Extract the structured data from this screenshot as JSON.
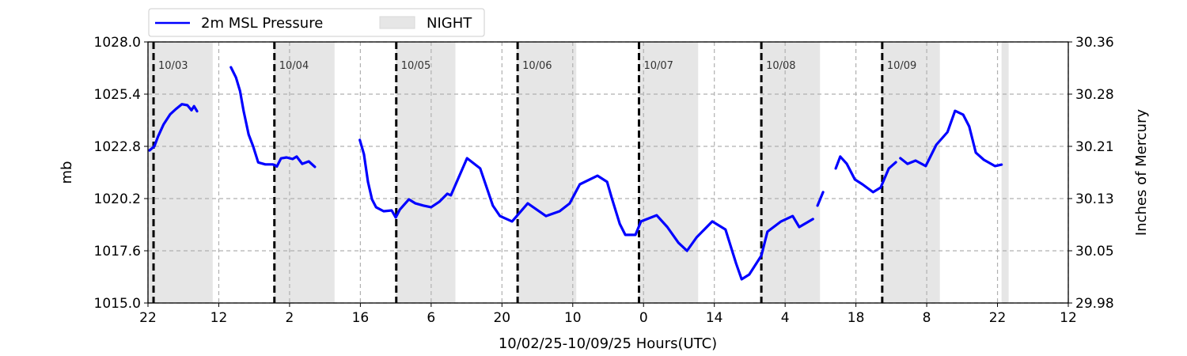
{
  "chart_data": {
    "type": "line",
    "xlabel": "10/02/25-10/09/25  Hours(UTC)",
    "ylabel": "mb",
    "ylabel_right": "Inches of Mercury",
    "xlim": [
      0,
      182
    ],
    "ylim": [
      1015.0,
      1028.0
    ],
    "grid": true,
    "legend_placement": "top-left, above plot",
    "x_ticks": [
      {
        "x": 0,
        "label": "22"
      },
      {
        "x": 14,
        "label": "12"
      },
      {
        "x": 28,
        "label": "2"
      },
      {
        "x": 42,
        "label": "16"
      },
      {
        "x": 56,
        "label": "6"
      },
      {
        "x": 70,
        "label": "20"
      },
      {
        "x": 84,
        "label": "10"
      },
      {
        "x": 98,
        "label": "0"
      },
      {
        "x": 112,
        "label": "14"
      },
      {
        "x": 126,
        "label": "4"
      },
      {
        "x": 140,
        "label": "18"
      },
      {
        "x": 154,
        "label": "8"
      },
      {
        "x": 168,
        "label": "22"
      },
      {
        "x": 182,
        "label": "12"
      }
    ],
    "y_ticks": [
      {
        "y": 1015.0,
        "label": "1015.0",
        "right": "29.98"
      },
      {
        "y": 1017.6,
        "label": "1017.6",
        "right": "30.05"
      },
      {
        "y": 1020.2,
        "label": "1020.2",
        "right": "30.13"
      },
      {
        "y": 1022.8,
        "label": "1022.8",
        "right": "30.21"
      },
      {
        "y": 1025.4,
        "label": "1025.4",
        "right": "30.28"
      },
      {
        "y": 1028.0,
        "label": "1028.0",
        "right": "30.36"
      }
    ],
    "day_markers": [
      {
        "x": 1.1,
        "label": "10/03"
      },
      {
        "x": 25.0,
        "label": "10/04"
      },
      {
        "x": 49.1,
        "label": "10/05"
      },
      {
        "x": 73.1,
        "label": "10/06"
      },
      {
        "x": 97.1,
        "label": "10/07"
      },
      {
        "x": 121.3,
        "label": "10/08"
      },
      {
        "x": 145.2,
        "label": "10/09"
      }
    ],
    "night_periods": [
      [
        0,
        12.8
      ],
      [
        24.9,
        36.9
      ],
      [
        49,
        60.8
      ],
      [
        72.9,
        84.7
      ],
      [
        97,
        108.8
      ],
      [
        121,
        132.9
      ],
      [
        145,
        156.6
      ],
      [
        168.8,
        170.2
      ]
    ],
    "legend": [
      {
        "label": "2m MSL Pressure",
        "color": "#0000ff",
        "kind": "line"
      },
      {
        "label": "NIGHT",
        "color": "#e6e6e6",
        "kind": "patch"
      }
    ],
    "series": [
      {
        "name": "2m MSL Pressure",
        "color": "#0000ff",
        "segments": [
          [
            [
              0.3,
              1022.6
            ],
            [
              1.25,
              1022.8
            ],
            [
              2.0,
              1023.3
            ],
            [
              3.1,
              1023.9
            ],
            [
              4.4,
              1024.4
            ],
            [
              5.5,
              1024.65
            ],
            [
              6.7,
              1024.9
            ],
            [
              7.8,
              1024.85
            ],
            [
              8.6,
              1024.6
            ],
            [
              9.1,
              1024.8
            ],
            [
              9.7,
              1024.55
            ]
          ],
          [
            [
              16.4,
              1026.74
            ],
            [
              17.4,
              1026.23
            ],
            [
              18.2,
              1025.56
            ],
            [
              18.9,
              1024.57
            ],
            [
              19.9,
              1023.39
            ],
            [
              20.8,
              1022.8
            ],
            [
              21.8,
              1022.0
            ],
            [
              23.2,
              1021.9
            ],
            [
              24.7,
              1021.9
            ],
            [
              25.5,
              1021.8
            ],
            [
              26.3,
              1022.2
            ],
            [
              27.4,
              1022.25
            ],
            [
              28.6,
              1022.17
            ],
            [
              29.4,
              1022.29
            ],
            [
              30.5,
              1021.93
            ],
            [
              31.8,
              1022.05
            ],
            [
              33.0,
              1021.78
            ]
          ],
          [
            [
              41.9,
              1023.12
            ],
            [
              42.7,
              1022.41
            ],
            [
              43.5,
              1021.03
            ],
            [
              44.3,
              1020.16
            ],
            [
              45.1,
              1019.77
            ],
            [
              46.6,
              1019.57
            ],
            [
              48.2,
              1019.61
            ],
            [
              49.0,
              1019.26
            ],
            [
              49.8,
              1019.65
            ],
            [
              51.6,
              1020.16
            ],
            [
              52.9,
              1019.96
            ],
            [
              54.5,
              1019.85
            ],
            [
              56.0,
              1019.77
            ],
            [
              57.6,
              1020.04
            ],
            [
              59.2,
              1020.44
            ],
            [
              59.9,
              1020.36
            ],
            [
              63.1,
              1022.21
            ],
            [
              65.7,
              1021.7
            ],
            [
              68.2,
              1019.85
            ],
            [
              69.6,
              1019.33
            ],
            [
              72.0,
              1019.06
            ],
            [
              75.1,
              1019.96
            ],
            [
              78.7,
              1019.33
            ],
            [
              81.4,
              1019.57
            ],
            [
              83.4,
              1019.96
            ],
            [
              85.4,
              1020.91
            ],
            [
              88.9,
              1021.34
            ],
            [
              90.8,
              1021.03
            ],
            [
              91.7,
              1020.24
            ],
            [
              93.3,
              1018.94
            ],
            [
              94.4,
              1018.39
            ],
            [
              96.4,
              1018.39
            ],
            [
              97.5,
              1019.06
            ],
            [
              100.6,
              1019.37
            ],
            [
              102.7,
              1018.78
            ],
            [
              104.9,
              1018.0
            ],
            [
              106.6,
              1017.6
            ],
            [
              108.5,
              1018.27
            ],
            [
              111.6,
              1019.06
            ],
            [
              114.2,
              1018.66
            ],
            [
              116.3,
              1016.97
            ],
            [
              117.4,
              1016.18
            ],
            [
              118.9,
              1016.42
            ],
            [
              121.3,
              1017.36
            ],
            [
              122.5,
              1018.55
            ],
            [
              125.2,
              1019.06
            ],
            [
              127.5,
              1019.33
            ],
            [
              128.8,
              1018.78
            ],
            [
              131.5,
              1019.18
            ]
          ],
          [
            [
              132.4,
              1019.85
            ],
            [
              133.5,
              1020.52
            ]
          ],
          [
            [
              136.0,
              1021.7
            ],
            [
              136.9,
              1022.29
            ],
            [
              138.2,
              1021.93
            ],
            [
              139.8,
              1021.15
            ],
            [
              141.3,
              1020.91
            ],
            [
              143.4,
              1020.52
            ],
            [
              144.9,
              1020.75
            ],
            [
              146.5,
              1021.7
            ],
            [
              147.9,
              1022.01
            ]
          ],
          [
            [
              148.8,
              1022.21
            ],
            [
              150.2,
              1021.93
            ],
            [
              151.8,
              1022.09
            ],
            [
              153.8,
              1021.82
            ],
            [
              155.9,
              1022.88
            ],
            [
              158.1,
              1023.51
            ],
            [
              159.6,
              1024.57
            ],
            [
              161.2,
              1024.38
            ],
            [
              162.4,
              1023.79
            ],
            [
              163.7,
              1022.49
            ],
            [
              165.3,
              1022.13
            ],
            [
              167.5,
              1021.82
            ],
            [
              168.8,
              1021.89
            ]
          ]
        ]
      }
    ]
  }
}
